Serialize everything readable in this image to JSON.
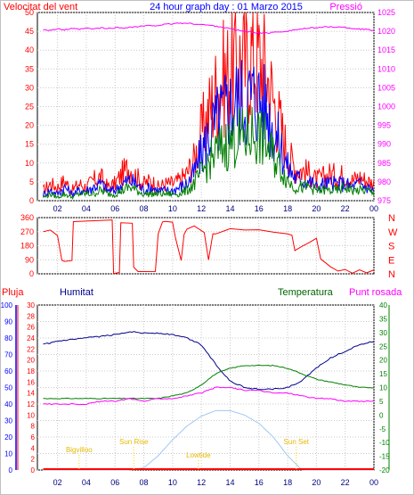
{
  "chart_data": [
    {
      "type": "line",
      "title": "24 hour graph day : 01 Marzo 2015",
      "left_axis_label": "Velocitat del vent",
      "right_axis_label": "Pressió",
      "x_ticks": [
        "02",
        "04",
        "06",
        "08",
        "10",
        "12",
        "14",
        "16",
        "18",
        "20",
        "22",
        "00"
      ],
      "y_left_ticks": [
        "0",
        "5",
        "10",
        "15",
        "20",
        "25",
        "30",
        "35",
        "40",
        "45",
        "50"
      ],
      "y_right_ticks": [
        "975",
        "980",
        "985",
        "990",
        "995",
        "1000",
        "1005",
        "1010",
        "1015",
        "1020",
        "1025"
      ],
      "y_left_range": [
        0,
        50
      ],
      "y_right_range": [
        975,
        1025
      ],
      "hours": [
        1,
        1.5,
        2,
        2.5,
        3,
        3.5,
        4,
        4.5,
        5,
        5.5,
        6,
        6.5,
        7,
        7.5,
        8,
        8.5,
        9,
        9.5,
        10,
        10.5,
        11,
        11.5,
        12,
        12.5,
        13,
        13.5,
        14,
        14.5,
        15,
        15.5,
        16,
        16.5,
        17,
        17.5,
        18,
        18.5,
        19,
        19.5,
        20,
        20.5,
        21,
        21.5,
        22,
        22.5,
        23,
        23.5,
        24
      ],
      "series": [
        {
          "color": "#ff0000",
          "values": [
            3,
            5,
            4,
            6,
            3,
            5,
            4,
            6,
            7,
            4,
            5,
            8,
            10,
            7,
            5,
            6,
            4,
            5,
            5,
            6,
            8,
            12,
            20,
            26,
            32,
            36,
            38,
            42,
            40,
            44,
            42,
            38,
            30,
            22,
            14,
            10,
            9,
            8,
            6,
            7,
            8,
            7,
            8,
            6,
            7,
            6,
            5
          ]
        },
        {
          "color": "#0000ff",
          "values": [
            2,
            3,
            2,
            4,
            2,
            3,
            3,
            4,
            5,
            3,
            3,
            5,
            6,
            5,
            3,
            4,
            3,
            3,
            3,
            4,
            5,
            8,
            14,
            19,
            23,
            26,
            28,
            30,
            29,
            31,
            30,
            27,
            21,
            16,
            10,
            7,
            6,
            6,
            4,
            5,
            5,
            5,
            5,
            4,
            5,
            4,
            3
          ]
        },
        {
          "color": "#008000",
          "values": [
            1,
            2,
            1,
            2,
            1,
            2,
            2,
            2,
            3,
            2,
            2,
            3,
            4,
            3,
            2,
            2,
            2,
            2,
            2,
            2,
            3,
            5,
            8,
            11,
            14,
            16,
            17,
            19,
            18,
            20,
            19,
            17,
            13,
            10,
            6,
            4,
            4,
            4,
            3,
            3,
            3,
            3,
            4,
            3,
            3,
            3,
            2
          ]
        },
        {
          "color": "#ff00ff",
          "name": "Pressió",
          "values": [
            1020.5,
            1020.3,
            1020.6,
            1020.4,
            1020.7,
            1020.5,
            1020.8,
            1020.6,
            1020.9,
            1020.7,
            1021.0,
            1020.9,
            1021.1,
            1021.2,
            1021.4,
            1021.5,
            1021.6,
            1021.8,
            1022.0,
            1022.2,
            1022.1,
            1022.0,
            1021.8,
            1021.6,
            1021.4,
            1021.1,
            1020.7,
            1020.3,
            1020.0,
            1019.8,
            1019.6,
            1019.5,
            1019.7,
            1019.9,
            1020.1,
            1020.4,
            1020.6,
            1020.8,
            1021.0,
            1021.1,
            1021.2,
            1021.1,
            1021.0,
            1020.8,
            1020.6,
            1020.5,
            1020.2
          ]
        }
      ]
    },
    {
      "type": "line",
      "title": "",
      "right_axis_labels": [
        "N",
        "W",
        "S",
        "E",
        "N"
      ],
      "y_left_ticks": [
        "360",
        "270",
        "180",
        "90",
        "0"
      ],
      "y_range": [
        0,
        360
      ],
      "series": [
        {
          "color": "#ff0000",
          "name": "",
          "points": [
            [
              1,
              270
            ],
            [
              1.5,
              280
            ],
            [
              2,
              250
            ],
            [
              2.3,
              90
            ],
            [
              2.5,
              80
            ],
            [
              3,
              85
            ],
            [
              3.1,
              340
            ],
            [
              5.8,
              340
            ],
            [
              5.9,
              0
            ],
            [
              6.3,
              10
            ],
            [
              6.4,
              330
            ],
            [
              7.2,
              320
            ],
            [
              7.3,
              40
            ],
            [
              7.6,
              20
            ],
            [
              8.8,
              15
            ],
            [
              9,
              260
            ],
            [
              9.3,
              330
            ],
            [
              9.5,
              340
            ],
            [
              10,
              330
            ],
            [
              10.2,
              230
            ],
            [
              10.6,
              90
            ],
            [
              10.8,
              260
            ],
            [
              11,
              280
            ],
            [
              11.5,
              300
            ],
            [
              12.2,
              270
            ],
            [
              12.5,
              90
            ],
            [
              12.8,
              250
            ],
            [
              13,
              260
            ],
            [
              14,
              290
            ],
            [
              15,
              280
            ],
            [
              16,
              280
            ],
            [
              17,
              270
            ],
            [
              18,
              260
            ],
            [
              18.3,
              240
            ],
            [
              18.5,
              150
            ],
            [
              19,
              180
            ],
            [
              19.5,
              200
            ],
            [
              20,
              230
            ],
            [
              20.3,
              100
            ],
            [
              21,
              40
            ],
            [
              21.5,
              20
            ],
            [
              22,
              30
            ],
            [
              22.5,
              10
            ],
            [
              23,
              20
            ],
            [
              23.5,
              10
            ],
            [
              24,
              20
            ]
          ]
        }
      ]
    },
    {
      "type": "line",
      "title": "",
      "left_axis_labels": [
        "Pluja",
        "Humitat"
      ],
      "right_axis_labels": [
        "Temperatura",
        "Punt rosada"
      ],
      "y_humidity_ticks": [
        "0",
        "10",
        "20",
        "30",
        "40",
        "50",
        "60",
        "70",
        "80",
        "90",
        "100"
      ],
      "y_rain_ticks": [
        "0",
        "2",
        "4",
        "6",
        "8",
        "10",
        "12",
        "14",
        "16",
        "18",
        "20",
        "22",
        "24",
        "26",
        "28",
        "30"
      ],
      "y_temp_ticks": [
        "-20",
        "-15",
        "-10",
        "-5",
        "0",
        "5",
        "10",
        "15",
        "20",
        "25",
        "30",
        "35",
        "40"
      ],
      "humidity_range": [
        0,
        100
      ],
      "temperature_range": [
        -20,
        40
      ],
      "annotations": [
        {
          "text": "Bigvilloo",
          "hour": 3.5
        },
        {
          "text": "Sun Rise",
          "hour": 7.3
        },
        {
          "text": "Lowtide",
          "hour": 11.8
        },
        {
          "text": "Sun Set",
          "hour": 18.6
        }
      ],
      "hours": [
        1,
        2,
        3,
        4,
        5,
        6,
        7,
        8,
        9,
        10,
        11,
        12,
        13,
        14,
        15,
        16,
        17,
        18,
        19,
        20,
        21,
        22,
        23,
        24
      ],
      "series": [
        {
          "color": "#00008b",
          "name": "Humitat",
          "values": [
            76,
            78,
            79,
            80,
            81,
            82,
            84,
            83,
            83,
            82,
            80,
            76,
            64,
            54,
            50,
            49,
            49,
            50,
            54,
            62,
            68,
            72,
            76,
            78
          ]
        },
        {
          "color": "#008000",
          "name": "Temperatura",
          "values": [
            6,
            6,
            6,
            6,
            6,
            6,
            6,
            6,
            6,
            7,
            8,
            11,
            15,
            17,
            18,
            18,
            18,
            17,
            15,
            13,
            12,
            11,
            10,
            10
          ]
        },
        {
          "color": "#ff00ff",
          "name": "Punt rosada",
          "values": [
            4,
            4,
            4,
            4,
            5,
            5,
            6,
            5,
            6,
            6,
            7,
            8,
            10,
            10,
            9,
            9,
            8,
            8,
            7,
            6,
            6,
            5,
            5,
            5
          ]
        },
        {
          "color": "#a0c8f0",
          "name": "",
          "values": [
            0,
            0,
            0,
            0,
            0,
            0,
            0,
            0.4,
            2.6,
            5.5,
            8,
            9.8,
            10.8,
            10.8,
            10,
            8.5,
            6,
            2.6,
            0,
            0,
            0,
            0,
            0,
            0
          ]
        },
        {
          "color": "#ff0000",
          "name": "Pluja",
          "values": [
            0,
            0,
            0,
            0,
            0,
            0,
            0,
            0,
            0,
            0,
            0,
            0,
            0,
            0,
            0,
            0,
            0,
            0,
            0,
            0,
            0,
            0,
            0,
            0
          ]
        }
      ]
    }
  ]
}
